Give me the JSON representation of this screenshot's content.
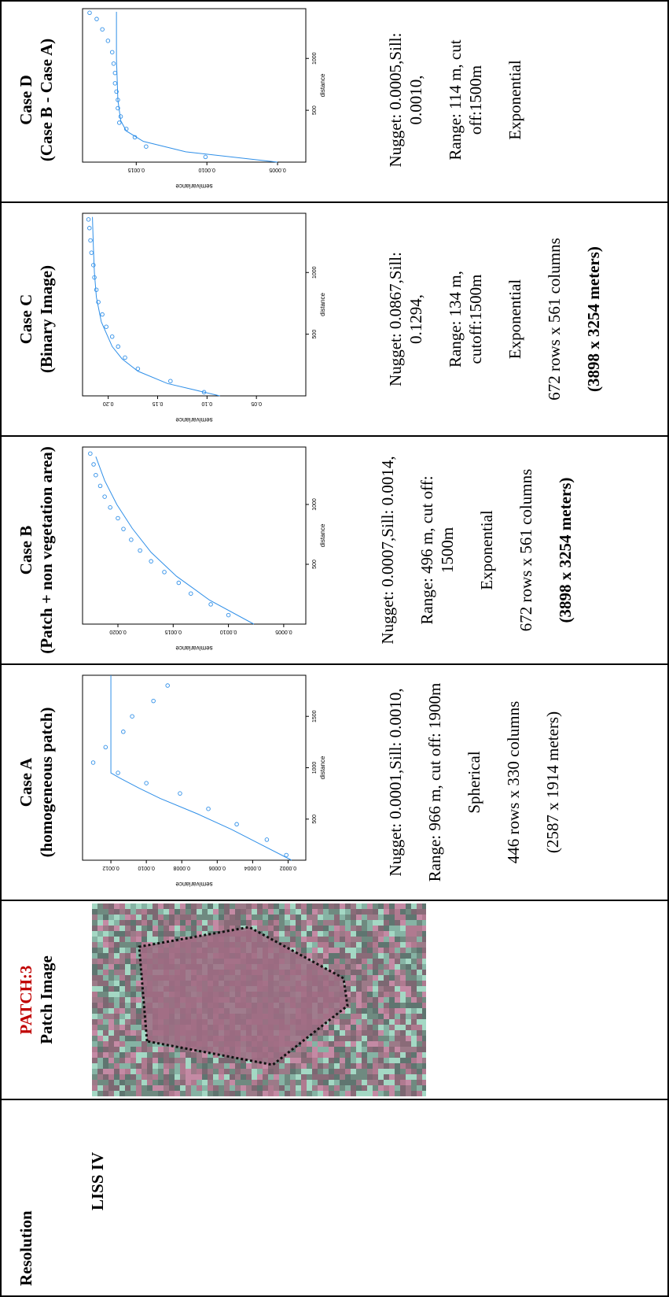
{
  "resolution": {
    "title": "Resolution",
    "value": "LISS IV"
  },
  "patch": {
    "title": "PATCH:3",
    "subtitle": "Patch Image"
  },
  "cases": [
    {
      "title": "Case A",
      "subtitle": "(homogeneous patch)",
      "lines": [
        "Nugget: 0.0001,Sill: 0.0010,",
        "Range: 966 m, cut off: 1900m",
        "Spherical",
        "446 rows x 330 columns",
        "(2587 x 1914 meters)"
      ]
    },
    {
      "title": "Case B",
      "subtitle": "(Patch + non vegetation area)",
      "lines": [
        "Nugget: 0.0007,Sill: 0.0014,",
        "Range: 496 m, cut off: 1500m",
        "Exponential",
        "672 rows x 561 columns",
        "(3898 x 3254 meters)"
      ]
    },
    {
      "title": "Case C",
      "subtitle": "(Binary Image)",
      "lines": [
        "Nugget: 0.0867,Sill: 0.1294,",
        "Range: 134 m, cutoff:1500m",
        "Exponential",
        "672 rows x 561 columns",
        "(3898 x 3254 meters)"
      ]
    },
    {
      "title": "Case D",
      "subtitle": "(Case B - Case A)",
      "lines": [
        "Nugget: 0.0005,Sill: 0.0010,",
        "Range: 114 m, cut off:1500m",
        "Exponential"
      ]
    }
  ],
  "chart_data": [
    {
      "type": "scatter",
      "xlabel": "distance",
      "ylabel": "semivariance",
      "color": "#2f8fe8",
      "xlim": [
        100,
        1900
      ],
      "ylim": [
        0.0001,
        0.00136
      ],
      "xticks": [
        500,
        1000,
        1500
      ],
      "yticks": [
        0.0002,
        0.0004,
        0.0006,
        0.0008,
        {
          "value": 0.001,
          "label": "0.0010"
        },
        0.0012
      ],
      "points": {
        "x": [
          150,
          300,
          450,
          600,
          750,
          850,
          950,
          1050,
          1200,
          1350,
          1500,
          1650,
          1800
        ],
        "y": [
          0.00021,
          0.00032,
          0.00049,
          0.00065,
          0.00081,
          0.001,
          0.00116,
          0.0013,
          0.00123,
          0.00113,
          0.00108,
          0.00096,
          0.00088
        ]
      },
      "fit": {
        "x": [
          100,
          250,
          400,
          550,
          700,
          800,
          900,
          950,
          1900
        ],
        "y": [
          0.00018,
          0.00035,
          0.00052,
          0.00071,
          0.00092,
          0.00104,
          0.00115,
          0.0012,
          0.0012
        ]
      }
    },
    {
      "type": "scatter",
      "xlabel": "distance",
      "ylabel": "semivariance",
      "color": "#2f8fe8",
      "xlim": [
        0,
        1480
      ],
      "ylim": [
        0.0003,
        0.00232
      ],
      "xticks": [
        500,
        1000
      ],
      "yticks": [
        0.0005,
        {
          "value": 0.001,
          "label": "0.0010"
        },
        0.0015,
        {
          "value": 0.002,
          "label": "0.0020"
        }
      ],
      "points": {
        "x": [
          75,
          165,
          255,
          345,
          435,
          525,
          615,
          705,
          795,
          885,
          975,
          1065,
          1155,
          1245,
          1335,
          1425
        ],
        "y": [
          0.001,
          0.00116,
          0.00134,
          0.00145,
          0.00158,
          0.0017,
          0.0018,
          0.00188,
          0.00195,
          0.002,
          0.00207,
          0.00212,
          0.00216,
          0.0022,
          0.00222,
          0.00225
        ]
      },
      "fit": {
        "x": [
          0,
          200,
          400,
          600,
          800,
          1000,
          1200,
          1400
        ],
        "y": [
          0.00077,
          0.00117,
          0.00147,
          0.0017,
          0.00187,
          0.00201,
          0.00212,
          0.0022
        ]
      }
    },
    {
      "type": "scatter",
      "xlabel": "distance",
      "ylabel": "semivariance",
      "color": "#2f8fe8",
      "xlim": [
        0,
        1480
      ],
      "ylim": [
        0,
        0.226
      ],
      "xticks": [
        500,
        1000
      ],
      "yticks": [
        0.05,
        {
          "value": 0.1,
          "label": "0.10"
        },
        0.15,
        {
          "value": 0.2,
          "label": "0.20"
        }
      ],
      "points": {
        "x": [
          30,
          120,
          220,
          310,
          400,
          480,
          560,
          660,
          760,
          860,
          960,
          1060,
          1160,
          1260,
          1360,
          1430
        ],
        "y": [
          0.103,
          0.137,
          0.17,
          0.183,
          0.19,
          0.196,
          0.202,
          0.206,
          0.21,
          0.212,
          0.214,
          0.215,
          0.217,
          0.218,
          0.219,
          0.22
        ]
      },
      "fit": {
        "x": [
          0,
          100,
          200,
          300,
          400,
          600,
          800,
          1000,
          1200,
          1450
        ],
        "y": [
          0.087,
          0.14,
          0.17,
          0.186,
          0.196,
          0.207,
          0.212,
          0.214,
          0.215,
          0.216
        ]
      }
    },
    {
      "type": "scatter",
      "xlabel": "distance",
      "ylabel": "semivariance",
      "color": "#2f8fe8",
      "xlim": [
        0,
        1480
      ],
      "ylim": [
        0.0003,
        0.00188
      ],
      "xticks": [
        500,
        1000
      ],
      "yticks": [
        0.0005,
        {
          "value": 0.001,
          "label": "0.0010"
        },
        0.0015
      ],
      "points": {
        "x": [
          50,
          150,
          240,
          320,
          380,
          440,
          520,
          600,
          680,
          760,
          860,
          950,
          1060,
          1170,
          1280,
          1380,
          1440
        ],
        "y": [
          0.00101,
          0.00143,
          0.00151,
          0.00157,
          0.00162,
          0.00161,
          0.00163,
          0.00163,
          0.00164,
          0.00165,
          0.00165,
          0.00166,
          0.00167,
          0.0017,
          0.00174,
          0.00178,
          0.00183
        ]
      },
      "fit": {
        "x": [
          0,
          100,
          200,
          300,
          400,
          600,
          1000,
          1450
        ],
        "y": [
          0.0005,
          0.00115,
          0.00145,
          0.00157,
          0.00161,
          0.00163,
          0.00164,
          0.00164
        ]
      }
    }
  ]
}
